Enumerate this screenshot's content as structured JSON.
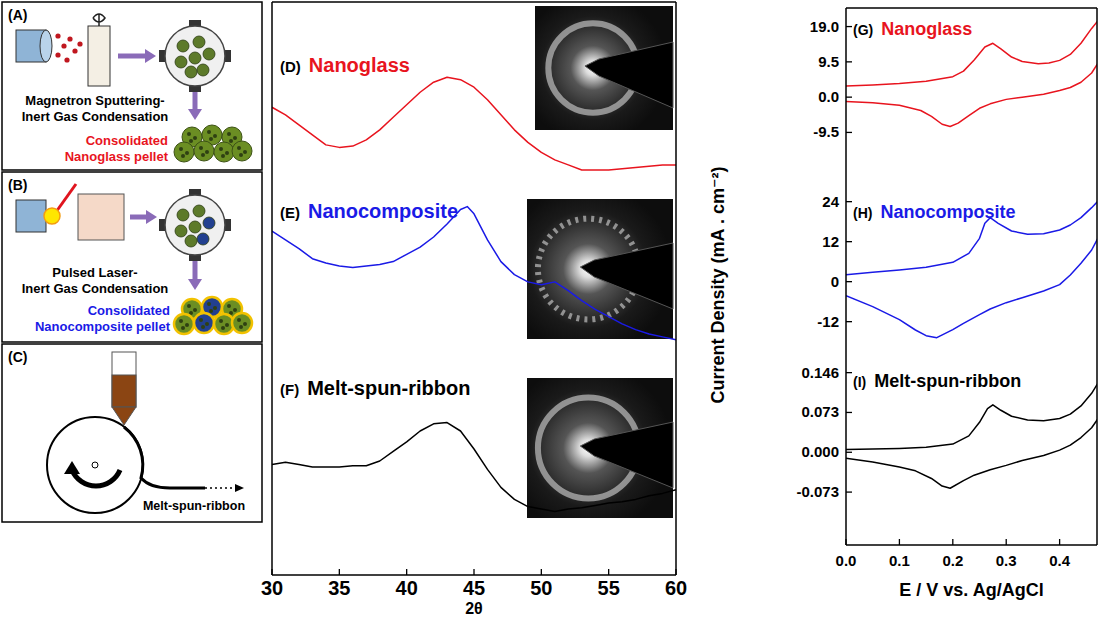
{
  "diagrams": [
    {
      "panel": "(A)",
      "process": [
        "Magnetron Sputtering-",
        "Inert Gas Condensation"
      ],
      "product": [
        "Consolidated",
        "Nanoglass pellet"
      ],
      "color": "#e8141e"
    },
    {
      "panel": "(B)",
      "process": [
        "Pulsed Laser-",
        "Inert Gas Condensation"
      ],
      "product": [
        "Consolidated",
        "Nanocomposite pellet"
      ],
      "color": "#1a1ae6"
    },
    {
      "panel": "(C)",
      "product": [
        "Melt-spun-ribbon"
      ],
      "color": "#000000"
    }
  ],
  "chart_data": [
    {
      "type": "line",
      "panel": "(D)",
      "title": "Nanoglass",
      "x": [
        30,
        31,
        32,
        33,
        34,
        35,
        36,
        37,
        38,
        39,
        40,
        41,
        42,
        43,
        44,
        45,
        46,
        47,
        48,
        49,
        50,
        51,
        52,
        53,
        54,
        55,
        56,
        57,
        58,
        59,
        60
      ],
      "series": [
        {
          "color": "#e8141e",
          "values": [
            66,
            60,
            52,
            44,
            36,
            34,
            35,
            40,
            48,
            58,
            68,
            78,
            86,
            90,
            88,
            82,
            72,
            60,
            48,
            38,
            30,
            24,
            20,
            16,
            16,
            16,
            17,
            18,
            19,
            20,
            20
          ]
        }
      ],
      "xlim": [
        30,
        60
      ],
      "ylim": [
        -4,
        150
      ],
      "tick_labels": false
    },
    {
      "type": "line",
      "panel": "(E)",
      "title": "Nanocomposite",
      "x": [
        30,
        31,
        32,
        33,
        34,
        35,
        36,
        37,
        38,
        39,
        40,
        41,
        42,
        43,
        44,
        44.5,
        45,
        46,
        47,
        48,
        49,
        50,
        51,
        52,
        53,
        54,
        55,
        56,
        57,
        58,
        59,
        60
      ],
      "series": [
        {
          "color": "#1a1ae6",
          "values": [
            78,
            72,
            66,
            59,
            56,
            54,
            53,
            54,
            55,
            57,
            62,
            67,
            74,
            83,
            93,
            95,
            90,
            72,
            57,
            48,
            43,
            41,
            43,
            37,
            30,
            24,
            19,
            14,
            10,
            7,
            5,
            3
          ]
        }
      ],
      "xlim": [
        30,
        60
      ],
      "ylim": [
        -2,
        103
      ],
      "tick_labels": false
    },
    {
      "type": "line",
      "panel": "(F)",
      "title": "Melt-spun-ribbon",
      "x": [
        30,
        31,
        32,
        33,
        34,
        35,
        36,
        37,
        38,
        39,
        40,
        41,
        42,
        43,
        44,
        45,
        46,
        47,
        48,
        49,
        50,
        51,
        52,
        53,
        54,
        55,
        56,
        57,
        58,
        59,
        60
      ],
      "series": [
        {
          "color": "#000000",
          "values": [
            54,
            56,
            54,
            52,
            52,
            52,
            53,
            53,
            57,
            65,
            73,
            82,
            88,
            89,
            82,
            67,
            50,
            35,
            25,
            19,
            17,
            15,
            17,
            18,
            20,
            22,
            23,
            25,
            28,
            30,
            33
          ]
        }
      ],
      "xlim": [
        30,
        60
      ],
      "ylim": [
        -38,
        152
      ],
      "xticks": [
        30,
        35,
        40,
        45,
        50,
        55,
        60
      ],
      "xlabel": "2θ",
      "tick_labels": "x"
    },
    {
      "type": "line",
      "panel": "(G)",
      "title": "Nanoglass",
      "x": [
        0,
        0.05,
        0.1,
        0.15,
        0.2,
        0.22,
        0.24,
        0.26,
        0.275,
        0.29,
        0.31,
        0.33,
        0.36,
        0.38,
        0.4,
        0.42,
        0.44,
        0.46,
        0.48,
        0.48,
        0.46,
        0.44,
        0.42,
        0.4,
        0.37,
        0.33,
        0.3,
        0.27,
        0.25,
        0.23,
        0.21,
        0.195,
        0.18,
        0.16,
        0.14,
        0.1,
        0.05,
        0
      ],
      "series": [
        {
          "color": "#e8141e",
          "values": [
            3.0,
            3.3,
            3.7,
            4.3,
            5.5,
            7,
            10,
            13.5,
            14.5,
            13,
            10.8,
            9.6,
            9.0,
            9.2,
            9.9,
            11.5,
            14.5,
            18.5,
            22,
            11,
            6.5,
            4.0,
            2.6,
            1.8,
            0.8,
            0,
            -0.6,
            -1.8,
            -3,
            -5,
            -7,
            -7.9,
            -7.3,
            -5.2,
            -3.6,
            -2.2,
            -1.5,
            -1.2
          ]
        }
      ],
      "xlim": [
        0,
        0.47
      ],
      "ylim": [
        -25,
        24
      ],
      "yticks": [
        -9.5,
        {
          "value": 0,
          "label": "0.0"
        },
        9.5,
        {
          "value": 19,
          "label": "19.0"
        }
      ],
      "tick_labels": "y"
    },
    {
      "type": "line",
      "panel": "(H)",
      "title": "Nanocomposite",
      "x": [
        0,
        0.05,
        0.1,
        0.15,
        0.2,
        0.23,
        0.25,
        0.26,
        0.27,
        0.285,
        0.31,
        0.34,
        0.37,
        0.4,
        0.42,
        0.44,
        0.46,
        0.48,
        0.48,
        0.46,
        0.44,
        0.42,
        0.4,
        0.37,
        0.33,
        0.3,
        0.27,
        0.25,
        0.22,
        0.2,
        0.17,
        0.15,
        0.13,
        0.1,
        0.05,
        0
      ],
      "series": [
        {
          "color": "#1a1ae6",
          "values": [
            2.1,
            2.8,
            3.5,
            4.3,
            5.8,
            8.5,
            13,
            17.5,
            19.2,
            17.5,
            15.2,
            14.2,
            14.4,
            15.5,
            17,
            19.2,
            22.2,
            25.5,
            15.6,
            9.5,
            5.5,
            2,
            -0.9,
            -2.8,
            -4.8,
            -6.3,
            -8.2,
            -9.9,
            -12.5,
            -14.4,
            -16.8,
            -16.2,
            -14.5,
            -11.4,
            -7.5,
            -4.2
          ]
        }
      ],
      "xlim": [
        0,
        0.47
      ],
      "ylim": [
        -25,
        27.5
      ],
      "yticks": [
        -12,
        0,
        12,
        24
      ],
      "ylabel": "Current Density (mA . cm⁻²)",
      "tick_labels": "y"
    },
    {
      "type": "line",
      "panel": "(I)",
      "title": "Melt-spun-ribbon",
      "x": [
        0,
        0.05,
        0.1,
        0.15,
        0.2,
        0.23,
        0.25,
        0.265,
        0.275,
        0.29,
        0.31,
        0.34,
        0.37,
        0.4,
        0.42,
        0.44,
        0.46,
        0.48,
        0.48,
        0.46,
        0.44,
        0.42,
        0.4,
        0.37,
        0.33,
        0.3,
        0.27,
        0.24,
        0.22,
        0.195,
        0.18,
        0.16,
        0.13,
        0.1,
        0.05,
        0
      ],
      "series": [
        {
          "color": "#000000",
          "values": [
            0.005,
            0.006,
            0.007,
            0.009,
            0.015,
            0.03,
            0.055,
            0.08,
            0.087,
            0.077,
            0.066,
            0.059,
            0.058,
            0.062,
            0.07,
            0.085,
            0.108,
            0.14,
            0.073,
            0.045,
            0.027,
            0.013,
            0.004,
            -0.006,
            -0.015,
            -0.024,
            -0.032,
            -0.042,
            -0.052,
            -0.066,
            -0.062,
            -0.048,
            -0.034,
            -0.027,
            -0.018,
            -0.011
          ]
        }
      ],
      "xlim": [
        0,
        0.47
      ],
      "ylim": [
        -0.17,
        0.16
      ],
      "xticks": [
        {
          "value": 0,
          "label": "0.0"
        },
        0.1,
        0.2,
        0.3,
        0.4
      ],
      "yticks": [
        -0.073,
        {
          "value": 0,
          "label": "0.000"
        },
        0.073,
        0.146
      ],
      "xlabel": "E / V vs. Ag/AgCl",
      "tick_labels": true
    }
  ]
}
